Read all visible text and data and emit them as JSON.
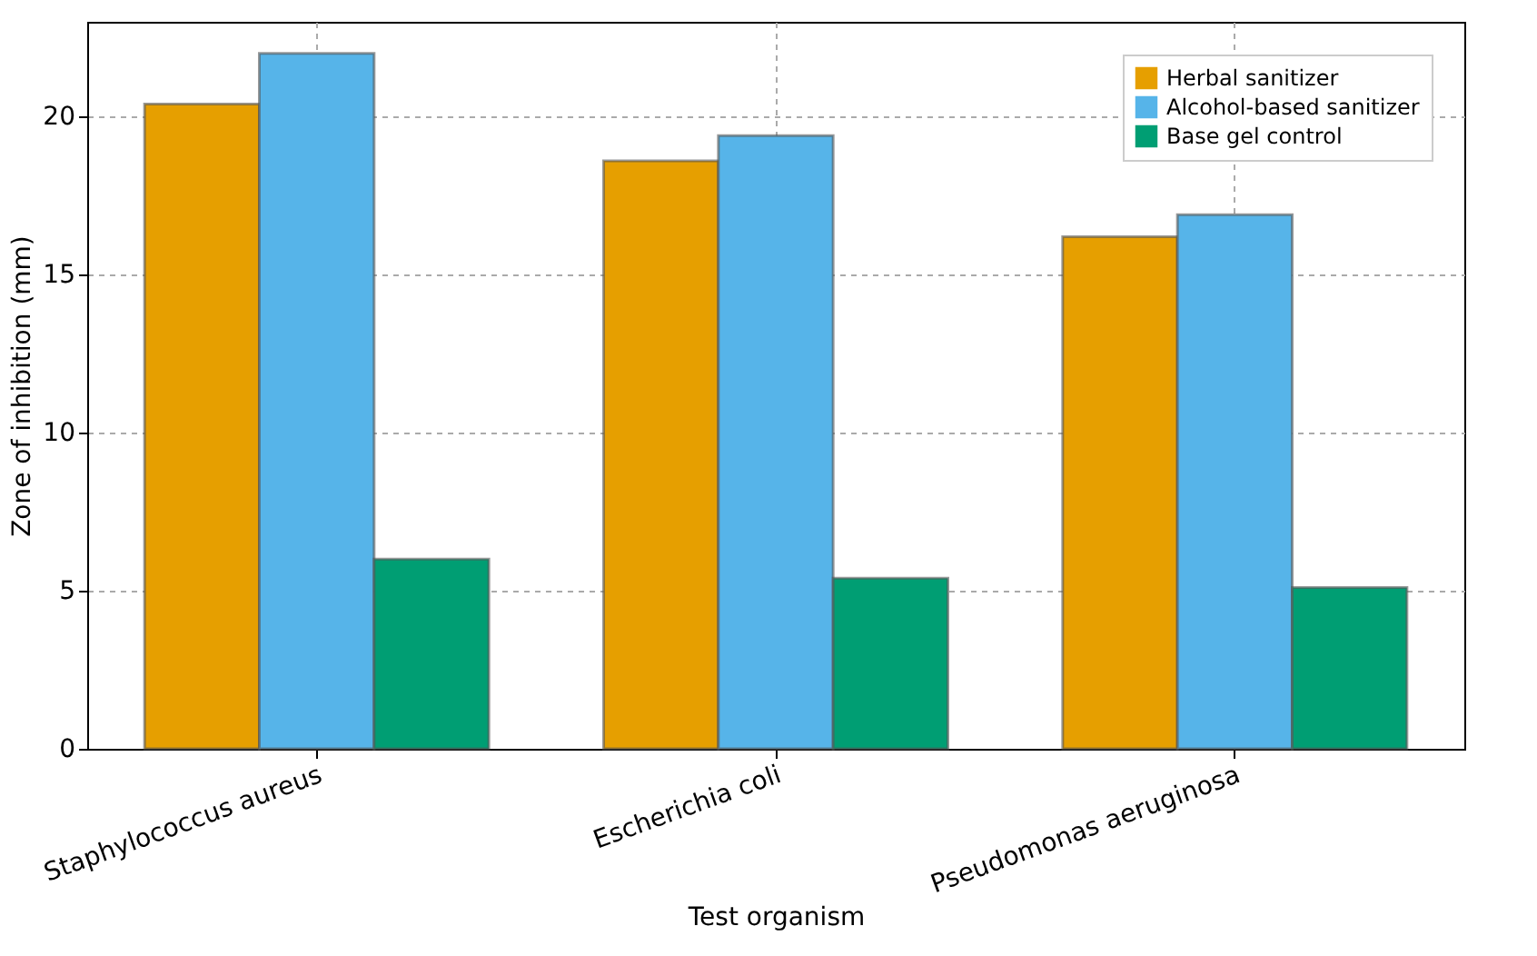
{
  "chart_data": {
    "type": "bar",
    "xlabel": "Test organism",
    "ylabel": "Zone of inhibition (mm)",
    "categories": [
      "Staphylococcus aureus",
      "Escherichia coli",
      "Pseudomonas aeruginosa"
    ],
    "series": [
      {
        "name": "Herbal sanitizer",
        "color": "#e69f00",
        "values": [
          20.4,
          18.6,
          16.2
        ]
      },
      {
        "name": "Alcohol-based sanitizer",
        "color": "#56b4e9",
        "values": [
          22.0,
          19.4,
          16.9
        ]
      },
      {
        "name": "Base gel control",
        "color": "#009e73",
        "values": [
          6.0,
          5.4,
          5.1
        ]
      }
    ],
    "ylim": [
      0,
      23
    ],
    "yticks": [
      0,
      5,
      10,
      15,
      20
    ],
    "grid": true,
    "legend": "top right"
  }
}
